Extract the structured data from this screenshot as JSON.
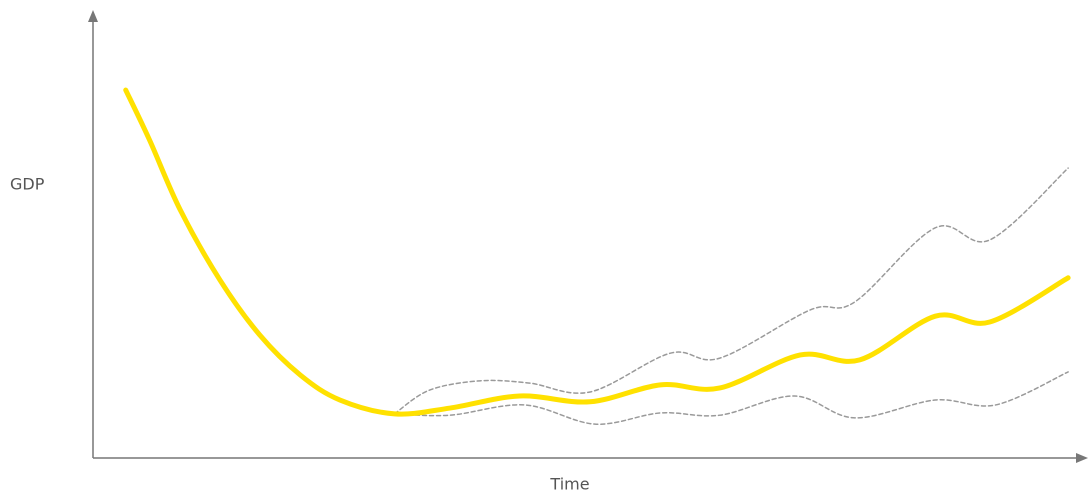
{
  "chart_data": {
    "type": "line",
    "ylabel": "GDP",
    "xlabel": "Time",
    "xlim": [
      0,
      100
    ],
    "ylim": [
      0,
      100
    ],
    "series": [
      {
        "color": "#ffe100",
        "dashed": false,
        "x": [
          3.3,
          5.7,
          8.8,
          12.8,
          16.8,
          20.9,
          24.9,
          30.4,
          36.0,
          43.0,
          50.1,
          57.2,
          63.2,
          71.3,
          77.3,
          84.9,
          90.4,
          98.3
        ],
        "values": [
          82.5,
          71.3,
          55.6,
          39.9,
          27.6,
          18.6,
          13.0,
          9.9,
          11.2,
          13.9,
          12.6,
          16.4,
          15.7,
          23.1,
          22.0,
          31.8,
          30.5,
          40.4
        ]
      },
      {
        "color": "#9a9a9a",
        "dashed": true,
        "x": [
          30.4,
          33.9,
          39.0,
          44.0,
          50.1,
          58.2,
          63.2,
          72.3,
          76.8,
          84.9,
          90.4,
          98.3
        ],
        "values": [
          9.9,
          15.2,
          17.3,
          16.8,
          14.8,
          23.5,
          22.4,
          33.2,
          35.0,
          51.6,
          48.9,
          65.0
        ]
      },
      {
        "color": "#9a9a9a",
        "dashed": true,
        "x": [
          30.4,
          36.0,
          43.5,
          50.6,
          57.2,
          63.2,
          70.7,
          76.8,
          84.9,
          91.0,
          98.3
        ],
        "values": [
          9.9,
          9.6,
          11.9,
          7.6,
          10.1,
          9.6,
          13.9,
          9.0,
          13.0,
          11.9,
          19.3
        ]
      }
    ]
  }
}
